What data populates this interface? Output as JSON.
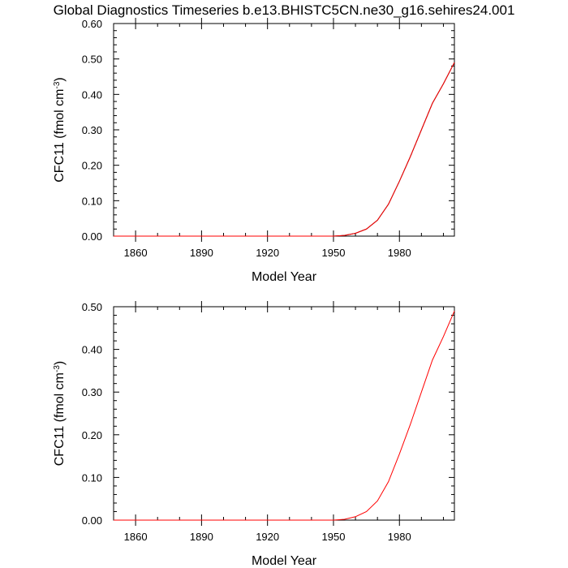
{
  "title": "Global Diagnostics Timeseries b.e13.BHISTC5CN.ne30_g16.sehires24.001",
  "chart_data": [
    {
      "type": "line",
      "xlabel": "Model Year",
      "ylabel_main": "CFC11 (fmol cm",
      "ylabel_sup": "-3",
      "ylabel_close": ")",
      "xlim": [
        1850,
        2005
      ],
      "ylim": [
        0,
        0.6
      ],
      "xticks": [
        1860,
        1890,
        1920,
        1950,
        1980
      ],
      "xtick_labels": [
        "1860",
        "1890",
        "1920",
        "1950",
        "1980"
      ],
      "yticks": [
        0,
        0.1,
        0.2,
        0.3,
        0.4,
        0.5,
        0.6
      ],
      "ytick_labels": [
        "0.00",
        "0.10",
        "0.20",
        "0.30",
        "0.40",
        "0.50",
        "0.60"
      ],
      "series": [
        {
          "color": "#000000",
          "x": [
            1850,
            1950,
            1955,
            1960,
            1965,
            1970,
            1975,
            1980,
            1985,
            1990,
            1995,
            2000,
            2005
          ],
          "y": [
            0,
            0,
            0.002,
            0.008,
            0.02,
            0.045,
            0.09,
            0.155,
            0.225,
            0.3,
            0.375,
            0.43,
            0.49
          ]
        },
        {
          "color": "#ff0000",
          "x": [
            1850,
            1950,
            1955,
            1960,
            1965,
            1970,
            1975,
            1980,
            1985,
            1990,
            1995,
            2000,
            2005
          ],
          "y": [
            0,
            0,
            0.002,
            0.008,
            0.02,
            0.045,
            0.09,
            0.155,
            0.225,
            0.3,
            0.375,
            0.43,
            0.49
          ]
        }
      ]
    },
    {
      "type": "line",
      "xlabel": "Model Year",
      "ylabel_main": "CFC11 (fmol cm",
      "ylabel_sup": "-3",
      "ylabel_close": ")",
      "xlim": [
        1850,
        2005
      ],
      "ylim": [
        0,
        0.5
      ],
      "xticks": [
        1860,
        1890,
        1920,
        1950,
        1980
      ],
      "xtick_labels": [
        "1860",
        "1890",
        "1920",
        "1950",
        "1980"
      ],
      "yticks": [
        0,
        0.1,
        0.2,
        0.3,
        0.4,
        0.5
      ],
      "ytick_labels": [
        "0.00",
        "0.10",
        "0.20",
        "0.30",
        "0.40",
        "0.50"
      ],
      "series": [
        {
          "color": "#ff0000",
          "x": [
            1850,
            1950,
            1955,
            1960,
            1965,
            1970,
            1975,
            1980,
            1985,
            1990,
            1995,
            2000,
            2005
          ],
          "y": [
            0,
            0,
            0.002,
            0.008,
            0.02,
            0.045,
            0.09,
            0.155,
            0.225,
            0.3,
            0.375,
            0.43,
            0.49
          ]
        }
      ]
    }
  ]
}
